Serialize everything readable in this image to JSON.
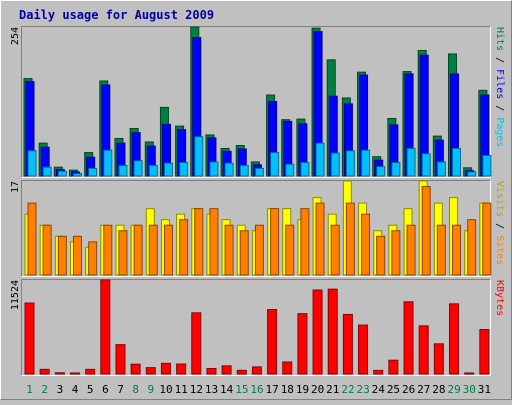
{
  "chart_data": {
    "type": "bar",
    "title": "Daily usage for August 2009",
    "categories": [
      "1",
      "2",
      "3",
      "4",
      "5",
      "6",
      "7",
      "8",
      "9",
      "10",
      "11",
      "12",
      "13",
      "14",
      "15",
      "16",
      "17",
      "18",
      "19",
      "20",
      "21",
      "22",
      "23",
      "24",
      "25",
      "26",
      "27",
      "28",
      "29",
      "30",
      "31"
    ],
    "weekend_days": [
      "1",
      "2",
      "8",
      "9",
      "15",
      "16",
      "22",
      "23",
      "29",
      "30"
    ],
    "panels": [
      {
        "name": "hits-files-pages",
        "ymax_label": "254",
        "ymax": 254,
        "side_label": {
          "parts": [
            "Pages",
            " / ",
            "Files",
            " / ",
            "Hits"
          ]
        },
        "series": [
          {
            "name": "Hits",
            "color": "#008040",
            "values": [
              166,
              56,
              15,
              10,
              40,
              162,
              64,
              81,
              58,
              117,
              85,
              254,
              70,
              47,
              52,
              24,
              138,
              96,
              97,
              252,
              198,
              133,
              177,
              33,
              98,
              178,
              214,
              68,
              208,
              14,
              146
            ]
          },
          {
            "name": "Files",
            "color": "#0000ff",
            "values": [
              161,
              49,
              11,
              7,
              32,
              155,
              56,
              74,
              51,
              88,
              79,
              236,
              65,
              42,
              46,
              19,
              127,
              93,
              89,
              246,
              136,
              123,
              172,
              27,
              87,
              174,
              206,
              61,
              174,
              9,
              138
            ]
          },
          {
            "name": "Pages",
            "color": "#00c0ff",
            "values": [
              43,
              15,
              8,
              4,
              13,
              44,
              18,
              26,
              18,
              22,
              23,
              67,
              24,
              22,
              18,
              13,
              40,
              20,
              23,
              56,
              39,
              43,
              44,
              16,
              23,
              47,
              38,
              24,
              47,
              7,
              35
            ]
          }
        ]
      },
      {
        "name": "visits-sites",
        "ymax_label": "17",
        "ymax": 17,
        "side_label": {
          "parts": [
            "Sites",
            " / ",
            "Visits"
          ]
        },
        "series": [
          {
            "name": "Visits",
            "color": "#ffff00",
            "values": [
              11,
              9,
              7,
              6,
              5,
              9,
              9,
              9,
              12,
              10,
              11,
              12,
              11,
              10,
              9,
              8,
              12,
              12,
              10,
              14,
              11,
              17,
              13,
              8,
              9,
              12,
              17,
              13,
              14,
              8,
              13
            ]
          },
          {
            "name": "Sites",
            "color": "#ff8000",
            "values": [
              13,
              9,
              7,
              7,
              6,
              9,
              8,
              9,
              9,
              9,
              10,
              12,
              12,
              9,
              8,
              9,
              12,
              9,
              12,
              13,
              9,
              13,
              11,
              7,
              8,
              9,
              16,
              9,
              9,
              10,
              13
            ]
          }
        ]
      },
      {
        "name": "kbytes",
        "ymax_label": "11524",
        "ymax": 11524,
        "side_label": {
          "parts": [
            "KBytes"
          ]
        },
        "series": [
          {
            "name": "KBytes",
            "color": "#ff0000",
            "values": [
              8700,
              570,
              150,
              110,
              570,
              11524,
              3600,
              1200,
              780,
              1310,
              1220,
              7500,
              680,
              1000,
              450,
              870,
              7900,
              1470,
              7400,
              10300,
              10400,
              7300,
              6000,
              440,
              1690,
              8850,
              5900,
              3700,
              8600,
              110,
              5450
            ]
          }
        ]
      }
    ]
  }
}
